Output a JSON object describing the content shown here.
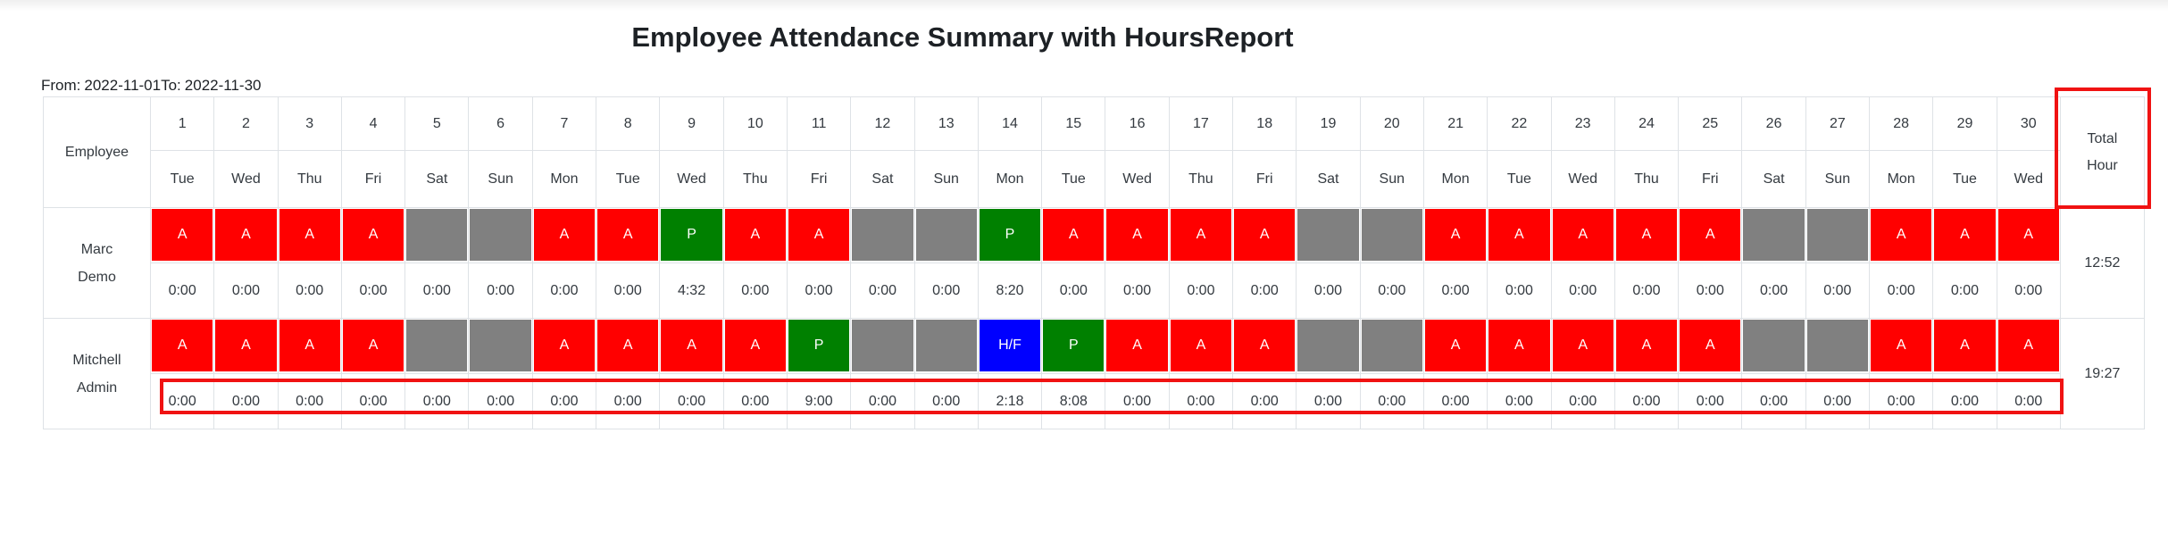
{
  "page": {
    "title": "Employee Attendance Summary with HoursReport"
  },
  "date_range": {
    "from_label": "From:",
    "from_value": "2022-11-01",
    "to_label": "To:",
    "to_value": "2022-11-30"
  },
  "table": {
    "employee_header": "Employee",
    "total_header_lines": [
      "Total",
      "Hour"
    ],
    "days": [
      {
        "num": "1",
        "name": "Tue"
      },
      {
        "num": "2",
        "name": "Wed"
      },
      {
        "num": "3",
        "name": "Thu"
      },
      {
        "num": "4",
        "name": "Fri"
      },
      {
        "num": "5",
        "name": "Sat"
      },
      {
        "num": "6",
        "name": "Sun"
      },
      {
        "num": "7",
        "name": "Mon"
      },
      {
        "num": "8",
        "name": "Tue"
      },
      {
        "num": "9",
        "name": "Wed"
      },
      {
        "num": "10",
        "name": "Thu"
      },
      {
        "num": "11",
        "name": "Fri"
      },
      {
        "num": "12",
        "name": "Sat"
      },
      {
        "num": "13",
        "name": "Sun"
      },
      {
        "num": "14",
        "name": "Mon"
      },
      {
        "num": "15",
        "name": "Tue"
      },
      {
        "num": "16",
        "name": "Wed"
      },
      {
        "num": "17",
        "name": "Thu"
      },
      {
        "num": "18",
        "name": "Fri"
      },
      {
        "num": "19",
        "name": "Sat"
      },
      {
        "num": "20",
        "name": "Sun"
      },
      {
        "num": "21",
        "name": "Mon"
      },
      {
        "num": "22",
        "name": "Tue"
      },
      {
        "num": "23",
        "name": "Wed"
      },
      {
        "num": "24",
        "name": "Thu"
      },
      {
        "num": "25",
        "name": "Fri"
      },
      {
        "num": "26",
        "name": "Sat"
      },
      {
        "num": "27",
        "name": "Sun"
      },
      {
        "num": "28",
        "name": "Mon"
      },
      {
        "num": "29",
        "name": "Tue"
      },
      {
        "num": "30",
        "name": "Wed"
      }
    ],
    "rows": [
      {
        "name_lines": [
          "Marc",
          "Demo"
        ],
        "status": [
          "A",
          "A",
          "A",
          "A",
          "",
          "",
          "A",
          "A",
          "P",
          "A",
          "A",
          "",
          "",
          "P",
          "A",
          "A",
          "A",
          "A",
          "",
          "",
          "A",
          "A",
          "A",
          "A",
          "A",
          "",
          "",
          "A",
          "A",
          "A"
        ],
        "hours": [
          "0:00",
          "0:00",
          "0:00",
          "0:00",
          "0:00",
          "0:00",
          "0:00",
          "0:00",
          "4:32",
          "0:00",
          "0:00",
          "0:00",
          "0:00",
          "8:20",
          "0:00",
          "0:00",
          "0:00",
          "0:00",
          "0:00",
          "0:00",
          "0:00",
          "0:00",
          "0:00",
          "0:00",
          "0:00",
          "0:00",
          "0:00",
          "0:00",
          "0:00",
          "0:00"
        ],
        "total": "12:52"
      },
      {
        "name_lines": [
          "Mitchell",
          "Admin"
        ],
        "status": [
          "A",
          "A",
          "A",
          "A",
          "",
          "",
          "A",
          "A",
          "A",
          "A",
          "P",
          "",
          "",
          "H/F",
          "P",
          "A",
          "A",
          "A",
          "",
          "",
          "A",
          "A",
          "A",
          "A",
          "A",
          "",
          "",
          "A",
          "A",
          "A"
        ],
        "hours": [
          "0:00",
          "0:00",
          "0:00",
          "0:00",
          "0:00",
          "0:00",
          "0:00",
          "0:00",
          "0:00",
          "0:00",
          "9:00",
          "0:00",
          "0:00",
          "2:18",
          "8:08",
          "0:00",
          "0:00",
          "0:00",
          "0:00",
          "0:00",
          "0:00",
          "0:00",
          "0:00",
          "0:00",
          "0:00",
          "0:00",
          "0:00",
          "0:00",
          "0:00",
          "0:00"
        ],
        "total": "19:27"
      }
    ]
  },
  "colors": {
    "absent_bg": "#ff0000",
    "present_bg": "#008000",
    "half_day_bg": "#0000ff",
    "weekend_bg": "#808080",
    "status_text": "#ffffff",
    "table_border": "#dee2e6",
    "text": "#343a40",
    "highlight_border": "#f01212"
  },
  "status_codes_visible": [
    "A",
    "P",
    "H/F"
  ]
}
